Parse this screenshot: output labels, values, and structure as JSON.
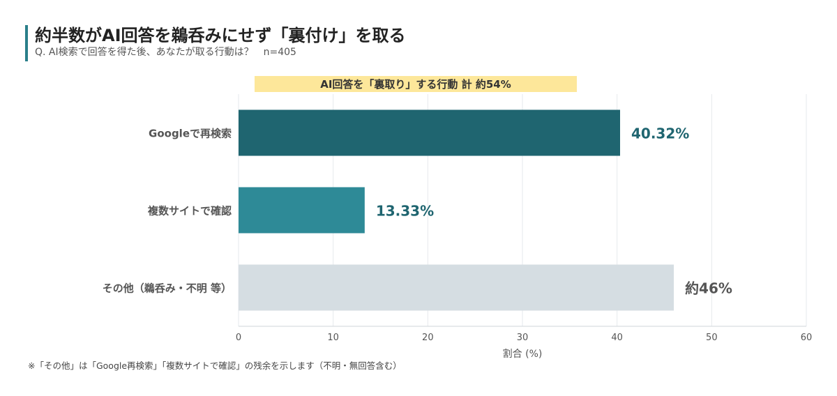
{
  "header": {
    "title": "約半数がAI回答を鵜呑みにせず「裏付け」を取る",
    "subtitle": "Q. AI検索で回答を得た後、あなたが取る行動は？　n=405"
  },
  "footnote": "※「その他」は「Google再検索」「複数サイトで確認」の残余を示します（不明・無回答含む）",
  "chart_data": {
    "type": "bar",
    "orientation": "horizontal",
    "categories": [
      "Googleで再検索",
      "複数サイトで確認",
      "その他（鵜呑み・不明 等）"
    ],
    "values": [
      40.32,
      13.33,
      46
    ],
    "value_labels": [
      "40.32%",
      "13.33%",
      "約46%"
    ],
    "colors": [
      "#1f6570",
      "#2e8a97",
      "#d5dde2"
    ],
    "label_colors": [
      "#1f6570",
      "#1f6570",
      "#555555"
    ],
    "xlabel": "割合 (%)",
    "xlim": [
      0,
      60
    ],
    "xticks": [
      0,
      10,
      20,
      30,
      40,
      50,
      60
    ],
    "grid": true,
    "annotation": {
      "text": "AI回答を「裏取り」する行動 計 約54%",
      "background": "#fde79a"
    }
  }
}
